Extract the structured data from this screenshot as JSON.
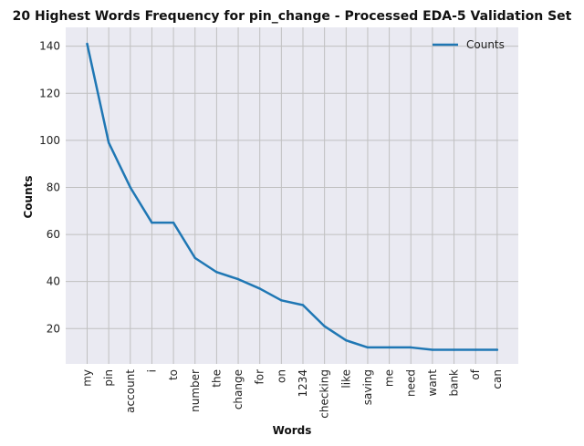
{
  "chart_data": {
    "type": "line",
    "title": "20 Highest Words Frequency for pin_change - Processed EDA-5 Validation Set",
    "xlabel": "Words",
    "ylabel": "Counts",
    "categories": [
      "my",
      "pin",
      "account",
      "i",
      "to",
      "number",
      "the",
      "change",
      "for",
      "on",
      "1234",
      "checking",
      "like",
      "saving",
      "me",
      "need",
      "want",
      "bank",
      "of",
      "can"
    ],
    "series": [
      {
        "name": "Counts",
        "color": "#1f77b4",
        "values": [
          141,
          99,
          80,
          65,
          65,
          50,
          44,
          41,
          37,
          32,
          30,
          21,
          15,
          12,
          12,
          12,
          11,
          11,
          11,
          11
        ]
      }
    ],
    "yticks": [
      20,
      40,
      60,
      80,
      100,
      120,
      140
    ],
    "ylim": [
      5,
      148
    ],
    "grid": true,
    "legend_position": "top-right",
    "background_color": "#eaeaf2",
    "grid_color": "#c0c0c0"
  }
}
